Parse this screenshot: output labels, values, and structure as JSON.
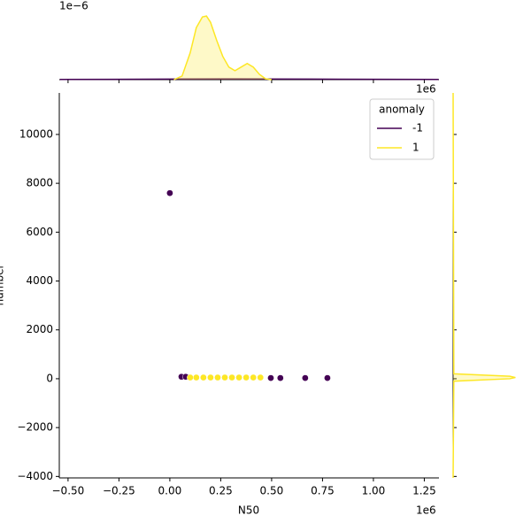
{
  "chart_data": [
    {
      "type": "scatter",
      "xlabel": "N50",
      "ylabel": "number",
      "x_offset_label": "1e6",
      "xlim": [
        -0.543,
        1.322
      ],
      "ylim": [
        -4060,
        11700
      ],
      "xticks": [
        {
          "value": -0.5,
          "label": "−0.50"
        },
        {
          "value": -0.25,
          "label": "−0.25"
        },
        {
          "value": 0,
          "label": "0.00"
        },
        {
          "value": 0.25,
          "label": "0.25"
        },
        {
          "value": 0.5,
          "label": "0.50"
        },
        {
          "value": 0.75,
          "label": "0.75"
        },
        {
          "value": 1,
          "label": "1.00"
        },
        {
          "value": 1.25,
          "label": "1.25"
        }
      ],
      "yticks": [
        {
          "value": -4000,
          "label": "−4000"
        },
        {
          "value": -2000,
          "label": "−2000"
        },
        0,
        2000,
        4000,
        6000,
        8000,
        10000
      ],
      "legend_title": "anomaly",
      "legend": "upper right",
      "series": [
        {
          "name": "-1",
          "color": "#440154",
          "x": [
            0.0,
            0.057,
            0.078,
            0.496,
            0.543,
            0.665,
            0.774
          ],
          "values": [
            7600,
            80,
            80,
            30,
            30,
            30,
            30
          ]
        },
        {
          "name": "1",
          "color": "#fde725",
          "x": [
            0.1,
            0.13,
            0.165,
            0.2,
            0.235,
            0.27,
            0.305,
            0.34,
            0.375,
            0.41,
            0.445
          ],
          "values": [
            50,
            50,
            50,
            50,
            50,
            50,
            50,
            50,
            50,
            50,
            50
          ]
        }
      ]
    },
    {
      "type": "area",
      "y_offset_label": "1e−6",
      "xlim": [
        -0.543,
        1.322
      ],
      "ylim": [
        0,
        4.2
      ],
      "series": [
        {
          "name": "-1",
          "color": "#440154",
          "x": [
            -0.54,
            0.0,
            0.3,
            0.7,
            1.32
          ],
          "values": [
            0.01,
            0.03,
            0.04,
            0.03,
            0.01
          ]
        },
        {
          "name": "1",
          "color": "#fde725",
          "x": [
            0.02,
            0.06,
            0.1,
            0.13,
            0.16,
            0.18,
            0.2,
            0.23,
            0.26,
            0.29,
            0.32,
            0.35,
            0.38,
            0.41,
            0.44,
            0.47,
            0.5
          ],
          "values": [
            0,
            0.2,
            1.5,
            2.9,
            3.5,
            3.55,
            3.2,
            2.2,
            1.3,
            0.7,
            0.5,
            0.7,
            0.9,
            0.7,
            0.3,
            0.05,
            0
          ]
        }
      ]
    },
    {
      "type": "area_h",
      "x_offset_label": "1e6",
      "xlim": [
        0,
        1.1
      ],
      "ylim": [
        -4060,
        11700
      ],
      "series": [
        {
          "name": "1",
          "color": "#fde725",
          "y": [
            -4060,
            -100,
            0,
            50,
            100,
            200,
            11700
          ],
          "values": [
            0,
            0.01,
            0.8,
            0.88,
            0.8,
            0.01,
            0
          ]
        }
      ]
    }
  ]
}
